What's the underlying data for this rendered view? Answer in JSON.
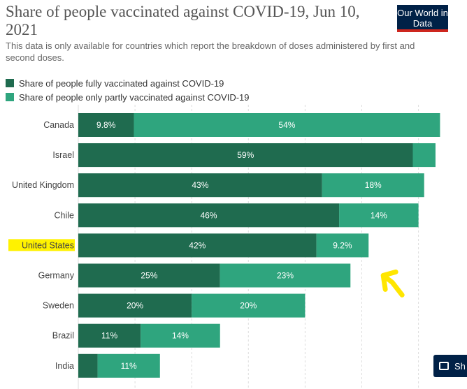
{
  "header": {
    "title": "Share of people vaccinated against COVID-19, Jun 10, 2021",
    "subtitle": "This data is only available for countries which report the breakdown of doses administered by first and second doses.",
    "logo_text": "Our World in Data"
  },
  "legend": {
    "items": [
      {
        "label": "Share of people fully vaccinated against COVID-19",
        "color": "#1f6b4f"
      },
      {
        "label": "Share of people only partly vaccinated against COVID-19",
        "color": "#2fa57e"
      }
    ]
  },
  "colors": {
    "full": "#1f6b4f",
    "partial": "#2fa57e",
    "highlight": "#fff200",
    "annotation": "#ffe600"
  },
  "share_button": {
    "label": "Sh",
    "icon": "share-icon"
  },
  "chart_data": {
    "type": "bar",
    "orientation": "horizontal",
    "stacked": true,
    "categories": [
      "Canada",
      "Israel",
      "United Kingdom",
      "Chile",
      "United States",
      "Germany",
      "Sweden",
      "Brazil",
      "India"
    ],
    "series": [
      {
        "name": "Share of people fully vaccinated against COVID-19",
        "values": [
          9.8,
          59,
          43,
          46,
          42,
          25,
          20,
          11,
          3.4
        ],
        "labels": [
          "9.8%",
          "59%",
          "43%",
          "46%",
          "42%",
          "25%",
          "20%",
          "11%",
          ""
        ]
      },
      {
        "name": "Share of people only partly vaccinated against COVID-19",
        "values": [
          54,
          4,
          18,
          14,
          9.2,
          23,
          20,
          14,
          11
        ],
        "labels": [
          "54%",
          "",
          "18%",
          "14%",
          "9.2%",
          "23%",
          "20%",
          "14%",
          "11%"
        ]
      }
    ],
    "xlim": [
      0,
      65
    ],
    "grid": true,
    "highlighted_category": "United States",
    "annotation": "hand-drawn yellow arrow pointing at the United States bar"
  }
}
